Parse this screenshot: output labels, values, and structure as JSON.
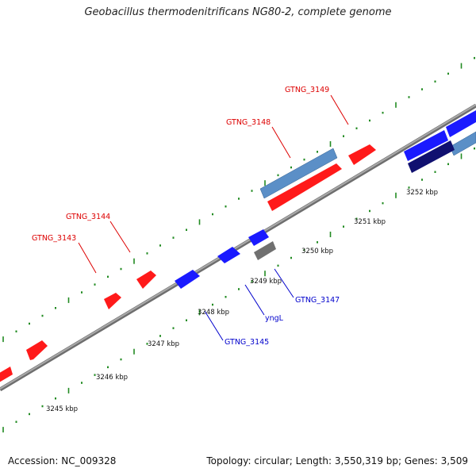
{
  "title": "Geobacillus thermodenitrificans NG80-2, complete genome",
  "footer": {
    "accession": "Accession: NC_009328",
    "topology": "Topology: circular; Length: 3,550,319 bp; Genes: 3,509"
  },
  "colors": {
    "forward_strand": "#ff1a1a",
    "reverse_strand": "#1a1aff",
    "backbone": "#8c8c8c",
    "tick": "#228b22",
    "rna": "#5b8fc7",
    "rna_dark": "#101070",
    "pseudo": "#707070",
    "label_red": "#dd0000",
    "label_blue": "#0000cc"
  },
  "kbp_ticks": [
    {
      "label": "3245 kbp"
    },
    {
      "label": "3246 kbp"
    },
    {
      "label": "3247 kbp"
    },
    {
      "label": "3248 kbp"
    },
    {
      "label": "3249 kbp"
    },
    {
      "label": "3250 kbp"
    },
    {
      "label": "3251 kbp"
    },
    {
      "label": "3252 kbp"
    }
  ],
  "gene_labels": [
    {
      "text": "GTNG_3149",
      "strand": "forward"
    },
    {
      "text": "GTNG_3148",
      "strand": "forward"
    },
    {
      "text": "GTNG_3144",
      "strand": "forward"
    },
    {
      "text": "GTNG_3143",
      "strand": "forward"
    },
    {
      "text": "GTNG_3147",
      "strand": "reverse"
    },
    {
      "text": "yngL",
      "strand": "reverse"
    },
    {
      "text": "GTNG_3145",
      "strand": "reverse"
    }
  ]
}
